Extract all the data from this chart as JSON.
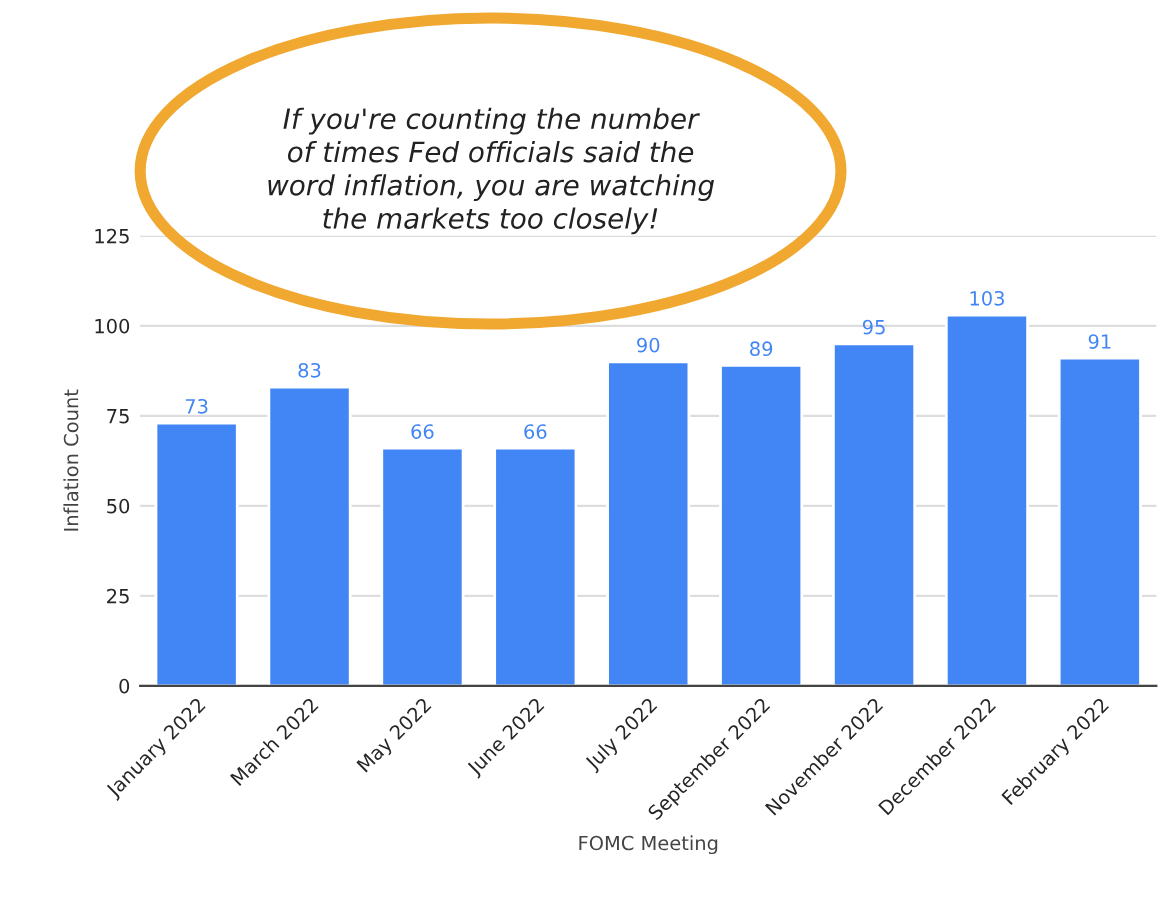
{
  "chart_data": {
    "type": "bar",
    "xlabel": "FOMC Meeting",
    "ylabel": "Inflation Count",
    "categories": [
      "January 2022",
      "March 2022",
      "May 2022",
      "June 2022",
      "July 2022",
      "September 2022",
      "November 2022",
      "December 2022",
      "February 2022"
    ],
    "values": [
      73,
      83,
      66,
      66,
      90,
      89,
      95,
      103,
      91
    ],
    "color": "#4285f4",
    "ylim": [
      0,
      125
    ],
    "yticks": [
      0,
      25,
      50,
      75,
      100,
      125
    ],
    "grid": "y",
    "data_labels": true,
    "annotations": [
      "If you're counting the number\nof times Fed officials said the\nword inflation, you are watching\nthe markets too closely!"
    ]
  }
}
